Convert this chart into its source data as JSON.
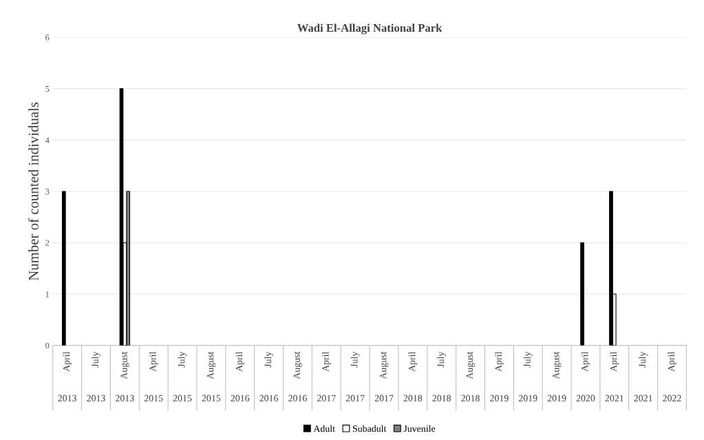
{
  "chart_data": {
    "type": "bar",
    "title": "Wadi El-Allagi National Park",
    "ylabel": "Number of counted individuals",
    "categories": [
      "April 2013",
      "July 2013",
      "August 2013",
      "April 2015",
      "July 2015",
      "August 2015",
      "April 2016",
      "July 2016",
      "August 2016",
      "April 2017",
      "July 2017",
      "August 2017",
      "April 2018",
      "July 2018",
      "August 2018",
      "April 2019",
      "July 2019",
      "August 2019",
      "April 2020",
      "April 2021",
      "July 2021",
      "April 2022"
    ],
    "series": [
      {
        "name": "Adult",
        "color": "#000000",
        "values": [
          3,
          null,
          5,
          null,
          null,
          null,
          null,
          null,
          null,
          null,
          null,
          null,
          null,
          null,
          null,
          null,
          null,
          null,
          2,
          3,
          null,
          null
        ]
      },
      {
        "name": "Subadult",
        "color": "#ffffff",
        "values": [
          null,
          null,
          2,
          null,
          null,
          null,
          null,
          null,
          null,
          null,
          null,
          null,
          null,
          null,
          null,
          null,
          null,
          null,
          null,
          1,
          null,
          null
        ]
      },
      {
        "name": "Juvenile",
        "color": "#808080",
        "values": [
          null,
          null,
          3,
          null,
          null,
          null,
          null,
          null,
          null,
          null,
          null,
          null,
          null,
          null,
          null,
          null,
          null,
          null,
          null,
          null,
          null,
          null
        ]
      }
    ],
    "ylim": [
      0,
      6
    ],
    "yticks": [
      0,
      1,
      2,
      3,
      4,
      5,
      6
    ],
    "grid": "y",
    "legend": "bottom"
  }
}
